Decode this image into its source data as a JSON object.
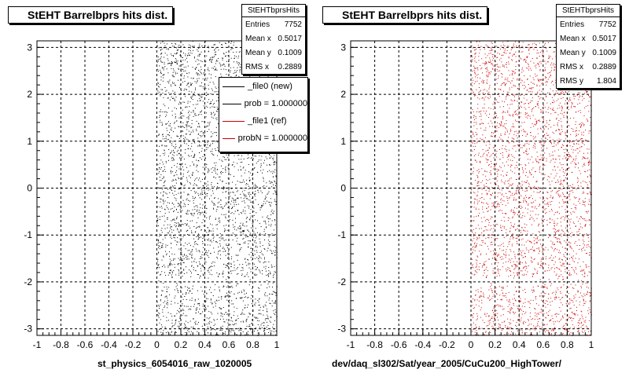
{
  "panels": [
    {
      "title": "StEHT Barrelbprs hits dist.",
      "x_title": "st_physics_6054016_raw_1020005",
      "stats": {
        "name": "StEHTbprsHits",
        "rows": [
          {
            "label": "Entries",
            "value": "7752"
          },
          {
            "label": "Mean x",
            "value": "0.5017"
          },
          {
            "label": "Mean y",
            "value": "0.1009"
          },
          {
            "label": "RMS x",
            "value": "0.2889"
          }
        ]
      },
      "legend": [
        {
          "label": "_file0 (new)",
          "color": "#000000"
        },
        {
          "label": "prob = 1.000000",
          "color": "#000000"
        },
        {
          "label": "_file1 (ref)",
          "color": "#cc0000"
        },
        {
          "label": "probN = 1.000000",
          "color": "#cc0000"
        }
      ]
    },
    {
      "title": "StEHT Barrelbprs hits dist.",
      "x_title": "dev/daq_sl302/Sat/year_2005/CuCu200_HighTower/",
      "stats": {
        "name": "StEHTbprsHits",
        "rows": [
          {
            "label": "Entries",
            "value": "7752"
          },
          {
            "label": "Mean x",
            "value": "0.5017"
          },
          {
            "label": "Mean y",
            "value": "0.1009"
          },
          {
            "label": "RMS x",
            "value": "0.2889"
          },
          {
            "label": "RMS y",
            "value": "1.804"
          }
        ]
      }
    }
  ],
  "chart_data": [
    {
      "type": "scatter",
      "title": "StEHT Barrelbprs hits dist.",
      "xlabel": "st_physics_6054016_raw_1020005",
      "xlim": [
        -1,
        1
      ],
      "ylim": [
        -3.14,
        3.14
      ],
      "x_ticks": [
        "-1",
        "-0.8",
        "-0.6",
        "-0.4",
        "-0.2",
        "0",
        "0.2",
        "0.4",
        "0.6",
        "0.8",
        "1"
      ],
      "y_ticks": [
        "-3",
        "-2",
        "-1",
        "0",
        "1",
        "2",
        "3"
      ],
      "grid": true,
      "point_color": "#000000",
      "entries": 7752,
      "x_range_filled": [
        0,
        1
      ],
      "y_range_filled": [
        -3.14,
        3.14
      ],
      "legend_position": "top-right"
    },
    {
      "type": "scatter",
      "title": "StEHT Barrelbprs hits dist.",
      "xlabel": "dev/daq_sl302/Sat/year_2005/CuCu200_HighTower/",
      "xlim": [
        -1,
        1
      ],
      "ylim": [
        -3.14,
        3.14
      ],
      "x_ticks": [
        "-1",
        "-0.8",
        "-0.6",
        "-0.4",
        "-0.2",
        "0",
        "0.2",
        "0.4",
        "0.6",
        "0.8",
        "1"
      ],
      "y_ticks": [
        "-3",
        "-2",
        "-1",
        "0",
        "1",
        "2",
        "3"
      ],
      "grid": true,
      "point_color": "#cc0000",
      "entries": 7752,
      "x_range_filled": [
        0,
        1
      ],
      "y_range_filled": [
        -3.14,
        3.14
      ]
    }
  ]
}
